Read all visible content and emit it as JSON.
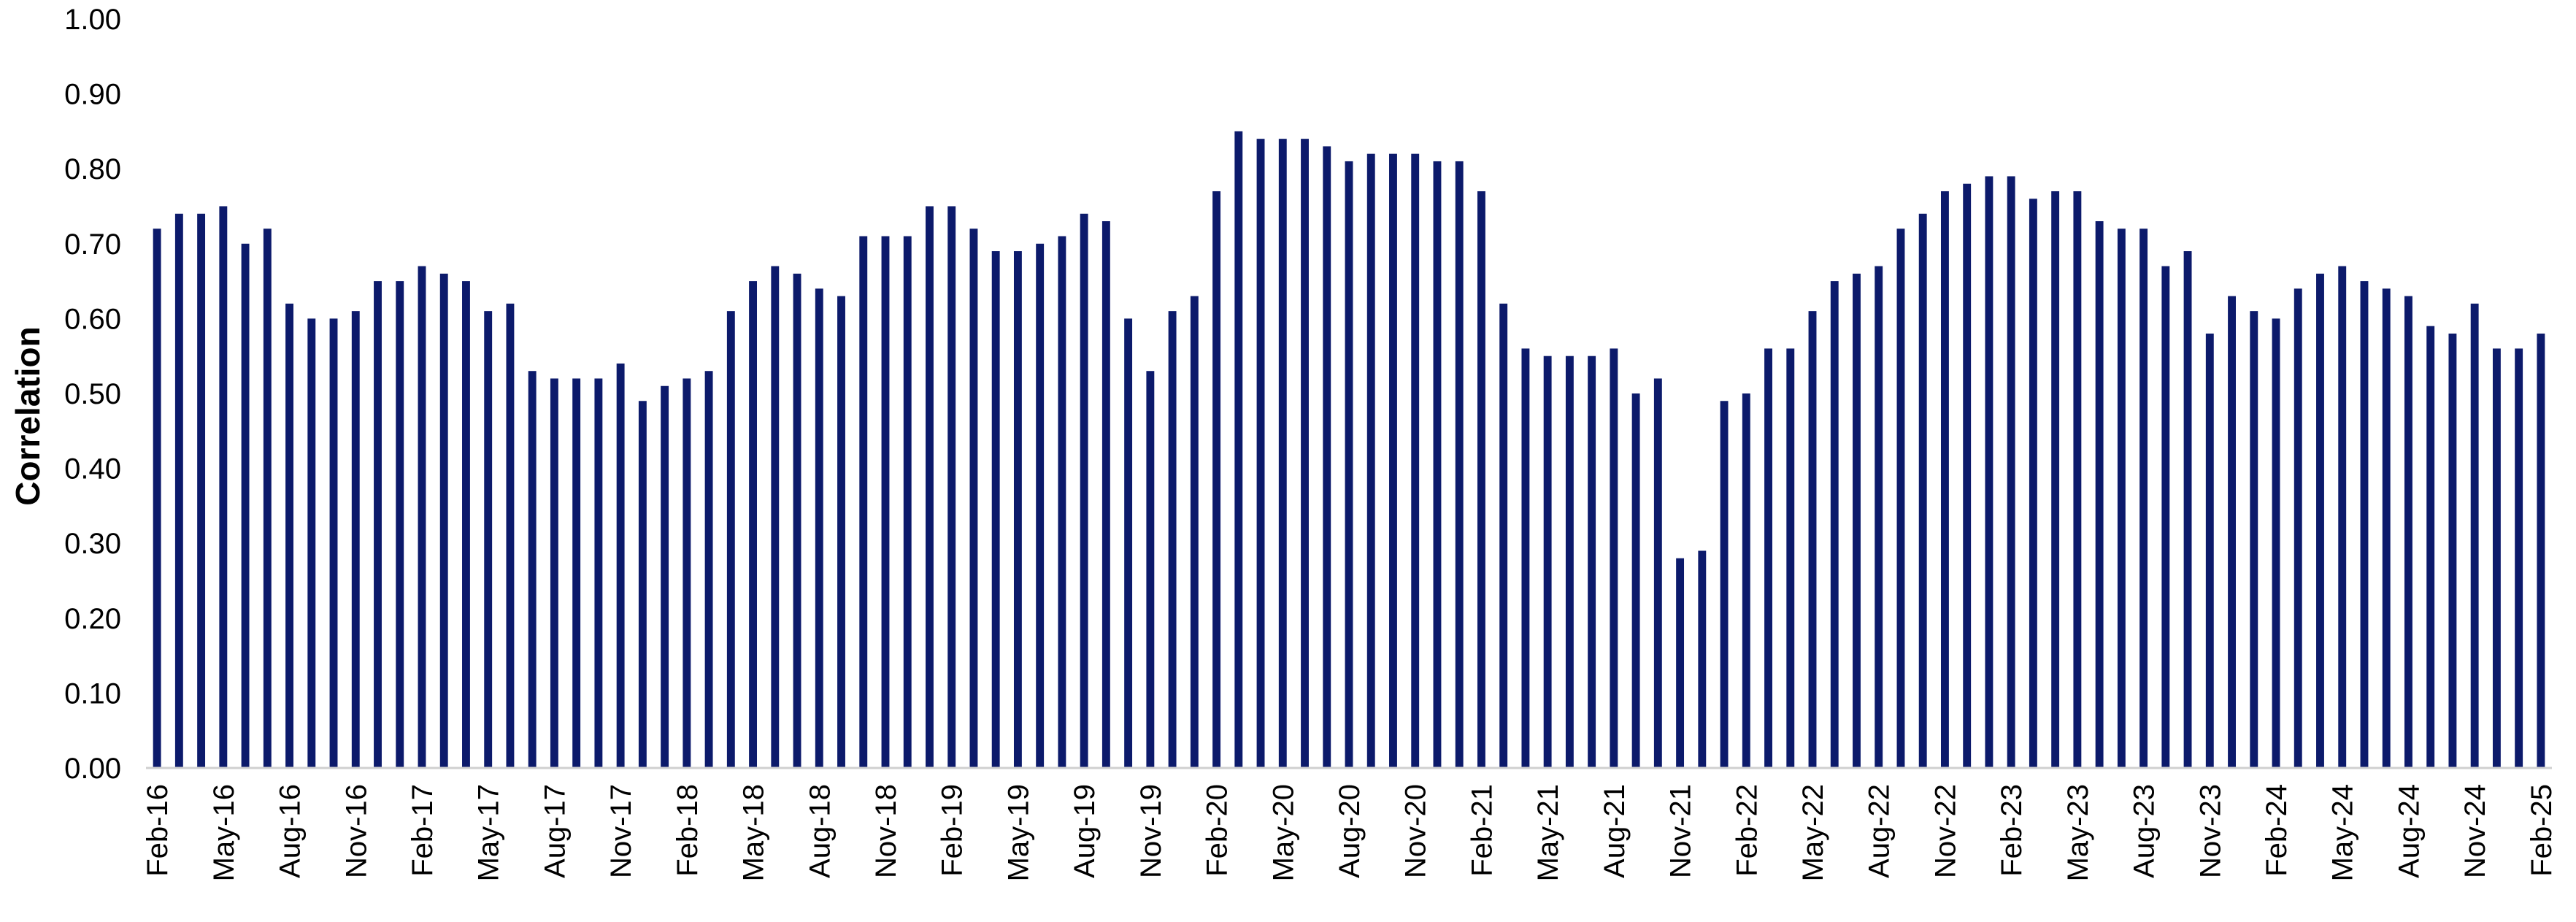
{
  "colors": {
    "bar": "#0c1a6b",
    "axis": "#d0d0d0",
    "text": "#000000"
  },
  "chart_data": {
    "type": "bar",
    "title": "",
    "xlabel": "",
    "ylabel": "Correlation",
    "ylim": [
      0,
      1
    ],
    "y_ticks": [
      "0.00",
      "0.10",
      "0.20",
      "0.30",
      "0.40",
      "0.50",
      "0.60",
      "0.70",
      "0.80",
      "0.90",
      "1.00"
    ],
    "grid": false,
    "legend": "none",
    "x_tick_labels": [
      "Feb-16",
      "May-16",
      "Aug-16",
      "Nov-16",
      "Feb-17",
      "May-17",
      "Aug-17",
      "Nov-17",
      "Feb-18",
      "May-18",
      "Aug-18",
      "Nov-18",
      "Feb-19",
      "May-19",
      "Aug-19",
      "Nov-19",
      "Feb-20",
      "May-20",
      "Aug-20",
      "Nov-20",
      "Feb-21",
      "May-21",
      "Aug-21",
      "Nov-21",
      "Feb-22",
      "May-22",
      "Aug-22",
      "Nov-22",
      "Feb-23",
      "May-23",
      "Aug-23",
      "Nov-23",
      "Feb-24",
      "May-24",
      "Aug-24",
      "Nov-24",
      "Feb-25"
    ],
    "categories": [
      "Feb-16",
      "Mar-16",
      "Apr-16",
      "May-16",
      "Jun-16",
      "Jul-16",
      "Aug-16",
      "Sep-16",
      "Oct-16",
      "Nov-16",
      "Dec-16",
      "Jan-17",
      "Feb-17",
      "Mar-17",
      "Apr-17",
      "May-17",
      "Jun-17",
      "Jul-17",
      "Aug-17",
      "Sep-17",
      "Oct-17",
      "Nov-17",
      "Dec-17",
      "Jan-18",
      "Feb-18",
      "Mar-18",
      "Apr-18",
      "May-18",
      "Jun-18",
      "Jul-18",
      "Aug-18",
      "Sep-18",
      "Oct-18",
      "Nov-18",
      "Dec-18",
      "Jan-19",
      "Feb-19",
      "Mar-19",
      "Apr-19",
      "May-19",
      "Jun-19",
      "Jul-19",
      "Aug-19",
      "Sep-19",
      "Oct-19",
      "Nov-19",
      "Dec-19",
      "Jan-20",
      "Feb-20",
      "Mar-20",
      "Apr-20",
      "May-20",
      "Jun-20",
      "Jul-20",
      "Aug-20",
      "Sep-20",
      "Oct-20",
      "Nov-20",
      "Dec-20",
      "Jan-21",
      "Feb-21",
      "Mar-21",
      "Apr-21",
      "May-21",
      "Jun-21",
      "Jul-21",
      "Aug-21",
      "Sep-21",
      "Oct-21",
      "Nov-21",
      "Dec-21",
      "Jan-22",
      "Feb-22",
      "Mar-22",
      "Apr-22",
      "May-22",
      "Jun-22",
      "Jul-22",
      "Aug-22",
      "Sep-22",
      "Oct-22",
      "Nov-22",
      "Dec-22",
      "Jan-23",
      "Feb-23",
      "Mar-23",
      "Apr-23",
      "May-23",
      "Jun-23",
      "Jul-23",
      "Aug-23",
      "Sep-23",
      "Oct-23",
      "Nov-23",
      "Dec-23",
      "Jan-24",
      "Feb-24",
      "Mar-24",
      "Apr-24",
      "May-24",
      "Jun-24",
      "Jul-24",
      "Aug-24",
      "Sep-24",
      "Oct-24",
      "Nov-24",
      "Dec-24",
      "Jan-25",
      "Feb-25"
    ],
    "values": [
      0.72,
      0.74,
      0.74,
      0.75,
      0.7,
      0.72,
      0.62,
      0.6,
      0.6,
      0.61,
      0.65,
      0.65,
      0.67,
      0.66,
      0.65,
      0.61,
      0.62,
      0.53,
      0.52,
      0.52,
      0.52,
      0.54,
      0.49,
      0.51,
      0.52,
      0.53,
      0.61,
      0.65,
      0.67,
      0.66,
      0.64,
      0.63,
      0.71,
      0.71,
      0.71,
      0.75,
      0.75,
      0.72,
      0.69,
      0.69,
      0.7,
      0.71,
      0.74,
      0.73,
      0.6,
      0.53,
      0.61,
      0.63,
      0.77,
      0.85,
      0.84,
      0.84,
      0.84,
      0.83,
      0.81,
      0.82,
      0.82,
      0.82,
      0.81,
      0.81,
      0.77,
      0.62,
      0.56,
      0.55,
      0.55,
      0.55,
      0.56,
      0.5,
      0.52,
      0.28,
      0.29,
      0.49,
      0.5,
      0.56,
      0.56,
      0.61,
      0.65,
      0.66,
      0.67,
      0.72,
      0.74,
      0.77,
      0.78,
      0.79,
      0.79,
      0.76,
      0.77,
      0.77,
      0.73,
      0.72,
      0.72,
      0.67,
      0.69,
      0.58,
      0.63,
      0.61,
      0.6,
      0.64,
      0.66,
      0.67,
      0.65,
      0.64,
      0.63,
      0.59,
      0.58,
      0.62,
      0.56,
      0.56,
      0.58
    ]
  }
}
